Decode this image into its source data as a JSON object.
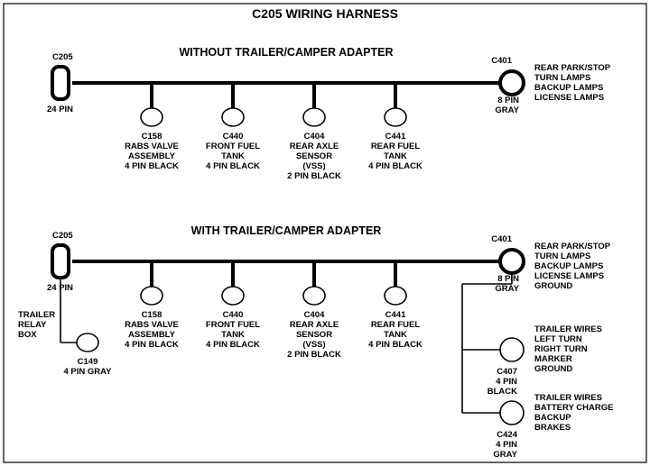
{
  "title": "C205 WIRING HARNESS",
  "top": {
    "subtitle": "WITHOUT  TRAILER/CAMPER  ADAPTER",
    "left": {
      "id": "C205",
      "pins": "24 PIN"
    },
    "right": {
      "id": "C401",
      "pins": "8 PIN",
      "color": "GRAY",
      "lines": [
        "REAR PARK/STOP",
        "TURN LAMPS",
        "BACKUP LAMPS",
        "LICENSE LAMPS"
      ]
    },
    "drops": [
      {
        "id": "C158",
        "lines": [
          "RABS VALVE",
          "ASSEMBLY",
          "4 PIN BLACK"
        ]
      },
      {
        "id": "C440",
        "lines": [
          "FRONT FUEL",
          "TANK",
          "4 PIN BLACK"
        ]
      },
      {
        "id": "C404",
        "lines": [
          "REAR AXLE",
          "SENSOR",
          "(VSS)",
          "2 PIN BLACK"
        ]
      },
      {
        "id": "C441",
        "lines": [
          "REAR FUEL",
          "TANK",
          "4 PIN BLACK"
        ]
      }
    ]
  },
  "bot": {
    "subtitle": "WITH TRAILER/CAMPER  ADAPTER",
    "left": {
      "id": "C205",
      "pins": "24 PIN"
    },
    "relay": {
      "lines": [
        "TRAILER",
        "RELAY",
        "BOX"
      ],
      "id": "C149",
      "pins": "4 PIN GRAY"
    },
    "right": {
      "id": "C401",
      "pins": "8 PIN",
      "color": "GRAY",
      "lines": [
        "REAR PARK/STOP",
        "TURN LAMPS",
        "BACKUP LAMPS",
        "LICENSE LAMPS",
        "GROUND"
      ]
    },
    "c407": {
      "id": "C407",
      "pins": "4 PIN",
      "color": "BLACK",
      "lines": [
        "TRAILER WIRES",
        "LEFT TURN",
        "RIGHT TURN",
        "MARKER",
        "GROUND"
      ]
    },
    "c424": {
      "id": "C424",
      "pins": "4 PIN",
      "color": "GRAY",
      "lines": [
        "TRAILER  WIRES",
        "BATTERY CHARGE",
        "BACKUP",
        "BRAKES"
      ]
    },
    "drops": [
      {
        "id": "C158",
        "lines": [
          "RABS VALVE",
          "ASSEMBLY",
          "4 PIN BLACK"
        ]
      },
      {
        "id": "C440",
        "lines": [
          "FRONT FUEL",
          "TANK",
          "4 PIN BLACK"
        ]
      },
      {
        "id": "C404",
        "lines": [
          "REAR AXLE",
          "SENSOR",
          "(VSS)",
          "2 PIN BLACK"
        ]
      },
      {
        "id": "C441",
        "lines": [
          "REAR FUEL",
          "TANK",
          "4 PIN BLACK"
        ]
      }
    ]
  },
  "style": {
    "thick": 4,
    "thin": 1.6,
    "rect_rx": 7,
    "ell_rx": 12,
    "ell_ry": 10,
    "big_r": 13
  }
}
